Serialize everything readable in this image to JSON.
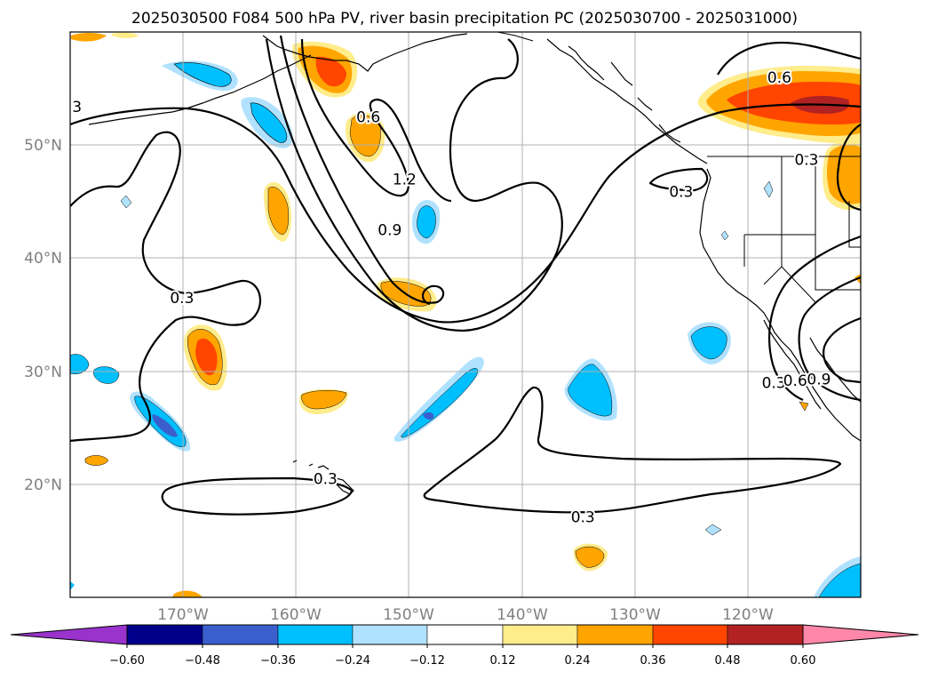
{
  "title": "2025030500 F084 500 hPa PV, river basin precipitation PC (2025030700 - 2025031000)",
  "map": {
    "projection": "PlateCarree",
    "lon_range": [
      -180,
      -110
    ],
    "lat_range": [
      10,
      60
    ],
    "gridlines": true,
    "lat_ticks": [
      {
        "value": 20,
        "label": "20°N"
      },
      {
        "value": 30,
        "label": "30°N"
      },
      {
        "value": 40,
        "label": "40°N"
      },
      {
        "value": 50,
        "label": "50°N"
      }
    ],
    "lon_ticks": [
      {
        "value": -170,
        "label": "170°W"
      },
      {
        "value": -160,
        "label": "160°W"
      },
      {
        "value": -150,
        "label": "150°W"
      },
      {
        "value": -140,
        "label": "140°W"
      },
      {
        "value": -130,
        "label": "130°W"
      },
      {
        "value": -120,
        "label": "120°W"
      }
    ],
    "pv_contour_labels": [
      {
        "text": "3",
        "lon": -179.4,
        "lat": 53.4
      },
      {
        "text": "0.6",
        "lon": -153.6,
        "lat": 52.5
      },
      {
        "text": "0.6",
        "lon": -117.2,
        "lat": 56.0
      },
      {
        "text": "1.2",
        "lon": -150.4,
        "lat": 47.0
      },
      {
        "text": "0.9",
        "lon": -151.7,
        "lat": 42.5
      },
      {
        "text": "0.3",
        "lon": -170.1,
        "lat": 36.5
      },
      {
        "text": "0.3",
        "lon": -125.9,
        "lat": 45.9
      },
      {
        "text": "0.3",
        "lon": -114.8,
        "lat": 48.7
      },
      {
        "text": "0.3",
        "lon": -157.4,
        "lat": 20.5
      },
      {
        "text": "0.3",
        "lon": -134.6,
        "lat": 17.1
      },
      {
        "text": "0.3",
        "lon": -117.7,
        "lat": 29.0
      },
      {
        "text": "0.6",
        "lon": -115.8,
        "lat": 29.2
      },
      {
        "text": "0.9",
        "lon": -113.7,
        "lat": 29.3
      }
    ]
  },
  "colorbar": {
    "extend": "both",
    "levels": [
      -0.6,
      -0.48,
      -0.36,
      -0.24,
      -0.12,
      0.12,
      0.24,
      0.36,
      0.48,
      0.6
    ],
    "tick_labels": [
      "−0.60",
      "−0.48",
      "−0.36",
      "−0.24",
      "−0.12",
      "0.12",
      "0.24",
      "0.36",
      "0.48",
      "0.60"
    ],
    "colors": [
      "#9933cc",
      "#00008b",
      "#3a5fcd",
      "#00bfff",
      "#b0e2ff",
      "#ffffff",
      "#ffec8b",
      "#ffa500",
      "#ff4500",
      "#b22222",
      "#ff88aa"
    ]
  }
}
